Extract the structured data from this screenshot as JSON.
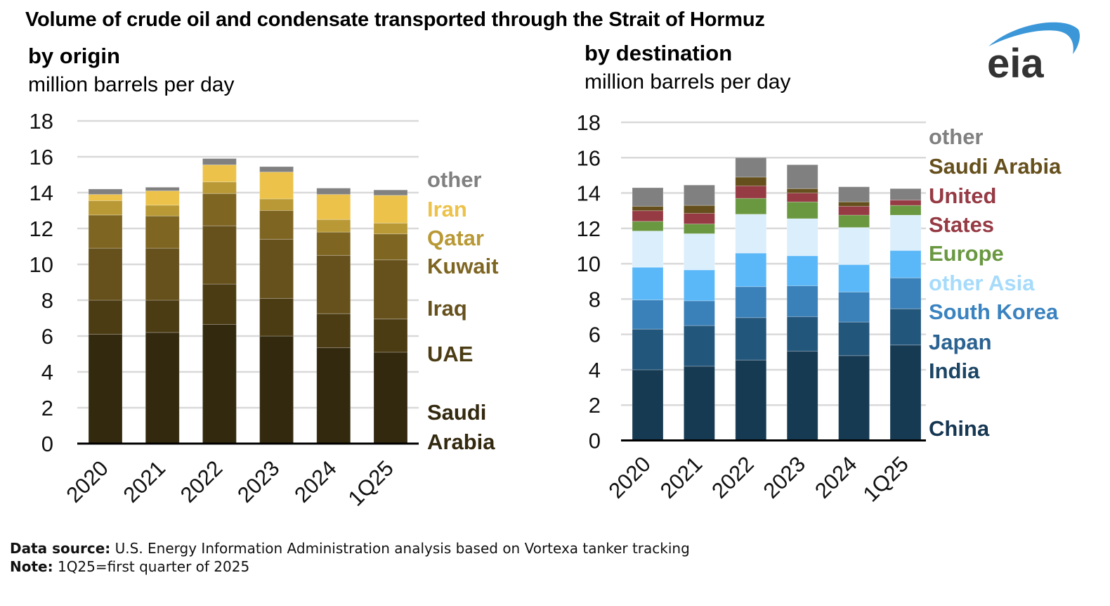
{
  "title": "Volume of crude oil and condensate transported through the Strait of Hormuz",
  "logo_text": "eia",
  "footer": {
    "source_label": "Data source:",
    "source_text": " U.S. Energy Information Administration analysis based on Vortexa tanker tracking",
    "note_label": "Note:",
    "note_text": " 1Q25=first quarter of 2025"
  },
  "chart_data": [
    {
      "type": "bar",
      "stacked": true,
      "title": "by origin",
      "ylabel": "million barrels per day",
      "xlabel": "",
      "ylim": [
        0,
        18
      ],
      "yticks": [
        "0",
        "2",
        "4",
        "6",
        "8",
        "10",
        "12",
        "14",
        "16",
        "18"
      ],
      "grid": true,
      "legend_placement": "right",
      "categories": [
        "2020",
        "2021",
        "2022",
        "2023",
        "2024",
        "1Q25"
      ],
      "series": [
        {
          "name": "Saudi Arabia",
          "label_lines": [
            "Saudi",
            "Arabia"
          ],
          "color": "#33290f",
          "values": [
            6.1,
            6.2,
            6.65,
            6.0,
            5.35,
            5.1
          ]
        },
        {
          "name": "UAE",
          "label_lines": [
            "UAE"
          ],
          "color": "#4b3c14",
          "values": [
            1.9,
            1.8,
            2.25,
            2.1,
            1.9,
            1.85
          ]
        },
        {
          "name": "Iraq",
          "label_lines": [
            "Iraq"
          ],
          "color": "#66511d",
          "values": [
            2.9,
            2.9,
            3.25,
            3.3,
            3.25,
            3.3
          ]
        },
        {
          "name": "Kuwait",
          "label_lines": [
            "Kuwait"
          ],
          "color": "#7e6522",
          "values": [
            1.85,
            1.8,
            1.8,
            1.6,
            1.3,
            1.45
          ]
        },
        {
          "name": "Qatar",
          "label_lines": [
            "Qatar"
          ],
          "color": "#b99935",
          "values": [
            0.8,
            0.6,
            0.65,
            0.65,
            0.7,
            0.6
          ]
        },
        {
          "name": "Iran",
          "label_lines": [
            "Iran"
          ],
          "color": "#ecc24a",
          "values": [
            0.35,
            0.8,
            0.95,
            1.5,
            1.4,
            1.55
          ]
        },
        {
          "name": "other",
          "label_lines": [
            "other"
          ],
          "color": "#808080",
          "values": [
            0.3,
            0.2,
            0.35,
            0.3,
            0.35,
            0.3
          ]
        }
      ]
    },
    {
      "type": "bar",
      "stacked": true,
      "title": "by destination",
      "ylabel": "million barrels per day",
      "xlabel": "",
      "ylim": [
        0,
        18
      ],
      "yticks": [
        "0",
        "2",
        "4",
        "6",
        "8",
        "10",
        "12",
        "14",
        "16",
        "18"
      ],
      "grid": true,
      "legend_placement": "right",
      "categories": [
        "2020",
        "2021",
        "2022",
        "2023",
        "2024",
        "1Q25"
      ],
      "series": [
        {
          "name": "China",
          "label_lines": [
            "China"
          ],
          "color": "#173a53",
          "text_color": "#163752",
          "values": [
            4.0,
            4.2,
            4.55,
            5.05,
            4.8,
            5.4
          ]
        },
        {
          "name": "India",
          "label_lines": [
            "India"
          ],
          "color": "#23567b",
          "text_color": "#1b4565",
          "values": [
            2.3,
            2.3,
            2.4,
            1.95,
            1.9,
            2.05
          ]
        },
        {
          "name": "Japan",
          "label_lines": [
            "Japan"
          ],
          "color": "#3a80b9",
          "text_color": "#2a6291",
          "values": [
            1.65,
            1.4,
            1.75,
            1.75,
            1.7,
            1.75
          ]
        },
        {
          "name": "South Korea",
          "label_lines": [
            "South Korea"
          ],
          "color": "#5bb8f8",
          "text_color": "#3a83c0",
          "values": [
            1.85,
            1.75,
            1.9,
            1.7,
            1.55,
            1.55
          ]
        },
        {
          "name": "other Asia",
          "label_lines": [
            "other Asia"
          ],
          "color": "#daeefc",
          "text_color": "#a6dbfb",
          "values": [
            2.05,
            2.05,
            2.2,
            2.1,
            2.1,
            2.0
          ]
        },
        {
          "name": "Europe",
          "label_lines": [
            "Europe"
          ],
          "color": "#6a9841",
          "text_color": "#6a9841",
          "values": [
            0.55,
            0.55,
            0.9,
            0.95,
            0.7,
            0.55
          ]
        },
        {
          "name": "United States",
          "label_lines": [
            "United",
            "States"
          ],
          "color": "#963a44",
          "text_color": "#963a44",
          "values": [
            0.6,
            0.6,
            0.7,
            0.5,
            0.5,
            0.3
          ]
        },
        {
          "name": "Saudi Arabia",
          "label_lines": [
            "Saudi Arabia"
          ],
          "color": "#654f1c",
          "text_color": "#654f1c",
          "values": [
            0.25,
            0.45,
            0.5,
            0.25,
            0.25,
            0.0
          ]
        },
        {
          "name": "other",
          "label_lines": [
            "other"
          ],
          "color": "#808080",
          "text_color": "#808080",
          "values": [
            1.05,
            1.15,
            1.1,
            1.35,
            0.85,
            0.65
          ]
        }
      ]
    }
  ]
}
